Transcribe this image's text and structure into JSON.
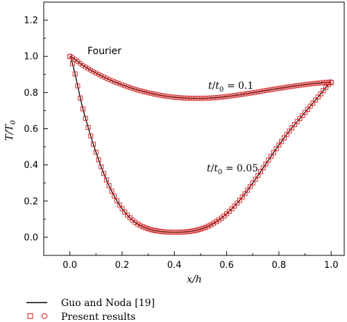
{
  "chart_data": {
    "type": "line",
    "xlabel": {
      "var": "x",
      "sep": "/",
      "unit": "h"
    },
    "ylabel": {
      "var": "T",
      "sep": "/",
      "unit": "T",
      "sub": "0"
    },
    "xlim": [
      -0.1,
      1.05
    ],
    "ylim": [
      -0.1,
      1.3
    ],
    "xticks": [
      0.0,
      0.2,
      0.4,
      0.6,
      0.8,
      1.0
    ],
    "xtick_labels": [
      "0.0",
      "0.2",
      "0.4",
      "0.6",
      "0.8",
      "1.0"
    ],
    "yticks": [
      0.0,
      0.2,
      0.4,
      0.6,
      0.8,
      1.0,
      1.2
    ],
    "ytick_labels": [
      "0.0",
      "0.2",
      "0.4",
      "0.6",
      "0.8",
      "1.0",
      "1.2"
    ],
    "grid": false,
    "legend_position": "bottom-left, outside plot",
    "colors": {
      "reference_line": "#000000",
      "markers": "#d62728"
    },
    "annotations": [
      {
        "text": "Fourier",
        "at": [
          0.08,
          1.03
        ]
      },
      {
        "parts": [
          "t",
          "/",
          "t",
          "0",
          " = 0.1"
        ],
        "at": [
          0.69,
          0.88
        ]
      },
      {
        "parts": [
          "t",
          "/",
          "t",
          "0",
          " = 0.05"
        ],
        "at": [
          0.6,
          0.43
        ]
      }
    ],
    "series": [
      {
        "name": "Guo and Noda [19]",
        "style": "solid black line",
        "curves": [
          {
            "label": "t/t0 = 0.1",
            "x": [
              0.0,
              0.05,
              0.1,
              0.15,
              0.2,
              0.25,
              0.3,
              0.35,
              0.4,
              0.45,
              0.5,
              0.55,
              0.6,
              0.65,
              0.7,
              0.75,
              0.8,
              0.85,
              0.9,
              0.95,
              1.0
            ],
            "y": [
              1.0,
              0.95,
              0.908,
              0.872,
              0.843,
              0.818,
              0.799,
              0.784,
              0.774,
              0.769,
              0.768,
              0.771,
              0.778,
              0.788,
              0.799,
              0.811,
              0.823,
              0.834,
              0.844,
              0.852,
              0.858
            ]
          },
          {
            "label": "t/t0 = 0.05",
            "x": [
              0.0,
              0.05,
              0.1,
              0.15,
              0.2,
              0.25,
              0.3,
              0.35,
              0.4,
              0.45,
              0.5,
              0.55,
              0.6,
              0.65,
              0.7,
              0.75,
              0.8,
              0.85,
              0.9,
              0.95,
              1.0
            ],
            "y": [
              1.0,
              0.71,
              0.47,
              0.285,
              0.158,
              0.083,
              0.047,
              0.032,
              0.028,
              0.031,
              0.045,
              0.077,
              0.13,
              0.205,
              0.3,
              0.405,
              0.51,
              0.605,
              0.69,
              0.775,
              0.855
            ]
          }
        ]
      },
      {
        "name": "Present results",
        "style": "red hollow markers",
        "curves": [
          {
            "label": "t/t0 = 0.1",
            "marker": "circle"
          },
          {
            "label": "t/t0 = 0.05",
            "marker": "square"
          }
        ]
      }
    ]
  }
}
